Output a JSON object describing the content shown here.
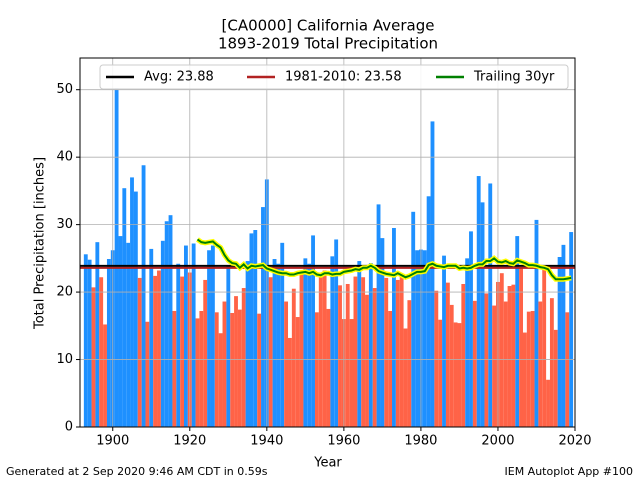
{
  "chart_data": {
    "type": "bar",
    "title": "[CA0000] California Average",
    "subtitle": "1893-2019 Total Precipitation",
    "xlabel": "Year",
    "ylabel": "Total Precipitation [inches]",
    "footer_left": "Generated at 2 Sep 2020 9:46 AM CDT in 0.59s",
    "footer_right": "IEM Autoplot App #100",
    "x": [
      1893,
      1894,
      1895,
      1896,
      1897,
      1898,
      1899,
      1900,
      1901,
      1902,
      1903,
      1904,
      1905,
      1906,
      1907,
      1908,
      1909,
      1910,
      1911,
      1912,
      1913,
      1914,
      1915,
      1916,
      1917,
      1918,
      1919,
      1920,
      1921,
      1922,
      1923,
      1924,
      1925,
      1926,
      1927,
      1928,
      1929,
      1930,
      1931,
      1932,
      1933,
      1934,
      1935,
      1936,
      1937,
      1938,
      1939,
      1940,
      1941,
      1942,
      1943,
      1944,
      1945,
      1946,
      1947,
      1948,
      1949,
      1950,
      1951,
      1952,
      1953,
      1954,
      1955,
      1956,
      1957,
      1958,
      1959,
      1960,
      1961,
      1962,
      1963,
      1964,
      1965,
      1966,
      1967,
      1968,
      1969,
      1970,
      1971,
      1972,
      1973,
      1974,
      1975,
      1976,
      1977,
      1978,
      1979,
      1980,
      1981,
      1982,
      1983,
      1984,
      1985,
      1986,
      1987,
      1988,
      1989,
      1990,
      1991,
      1992,
      1993,
      1994,
      1995,
      1996,
      1997,
      1998,
      1999,
      2000,
      2001,
      2002,
      2003,
      2004,
      2005,
      2006,
      2007,
      2008,
      2009,
      2010,
      2011,
      2012,
      2013,
      2014,
      2015,
      2016,
      2017,
      2018,
      2019
    ],
    "values": [
      25.6,
      24.8,
      20.7,
      27.4,
      22.2,
      15.2,
      24.9,
      26.2,
      50.2,
      28.3,
      35.4,
      27.3,
      37.0,
      34.9,
      22.1,
      38.8,
      15.6,
      26.4,
      22.4,
      23.2,
      27.6,
      30.5,
      31.4,
      17.2,
      24.2,
      22.3,
      26.9,
      22.9,
      27.2,
      16.1,
      17.2,
      21.8,
      26.2,
      26.9,
      17.0,
      13.9,
      18.6,
      23.9,
      16.9,
      19.4,
      17.4,
      20.6,
      24.6,
      28.7,
      29.2,
      16.8,
      32.6,
      36.7,
      22.2,
      24.9,
      24.2,
      27.3,
      18.6,
      13.2,
      20.5,
      16.3,
      22.7,
      25.0,
      24.2,
      28.4,
      17.0,
      22.6,
      23.2,
      17.5,
      25.3,
      27.8,
      21.0,
      16.0,
      21.2,
      16.0,
      22.3,
      24.6,
      22.2,
      19.6,
      24.3,
      20.6,
      33.0,
      28.0,
      22.1,
      17.2,
      29.5,
      21.8,
      22.3,
      14.6,
      18.8,
      31.9,
      26.2,
      26.3,
      26.2,
      34.2,
      45.3,
      20.2,
      15.9,
      25.4,
      21.4,
      18.1,
      15.5,
      15.4,
      21.2,
      25.0,
      29.0,
      18.7,
      37.2,
      33.3,
      19.8,
      36.1,
      18.0,
      21.5,
      22.8,
      18.6,
      20.9,
      21.1,
      28.3,
      23.5,
      14.0,
      17.1,
      17.2,
      30.7,
      18.6,
      23.5,
      7.0,
      19.1,
      14.4,
      25.2,
      27.0,
      17.0,
      28.9
    ],
    "above_color": "#1e90ff",
    "below_color": "#ff6347",
    "hlines": [
      {
        "name": "Avg: 23.88",
        "value": 23.88,
        "color": "#000000"
      },
      {
        "name": "1981-2010: 23.58",
        "value": 23.58,
        "color": "#b22222"
      }
    ],
    "series": [
      {
        "name": "Trailing 30yr",
        "color": "#008000",
        "values": [
          null,
          null,
          null,
          null,
          null,
          null,
          null,
          null,
          null,
          null,
          null,
          null,
          null,
          null,
          null,
          null,
          null,
          null,
          null,
          null,
          null,
          null,
          null,
          null,
          null,
          null,
          null,
          null,
          null,
          27.8,
          27.4,
          27.3,
          27.4,
          27.5,
          27.0,
          26.6,
          25.5,
          24.7,
          24.3,
          24.2,
          23.6,
          24.1,
          23.5,
          23.9,
          23.8,
          23.9,
          24.0,
          23.5,
          23.3,
          23.1,
          22.9,
          22.8,
          22.8,
          22.6,
          22.6,
          22.8,
          22.9,
          23.0,
          22.8,
          23.0,
          22.6,
          22.5,
          22.8,
          22.8,
          22.6,
          22.7,
          22.7,
          23.0,
          23.1,
          23.2,
          23.4,
          23.3,
          23.6,
          23.6,
          23.9,
          23.6,
          23.1,
          22.9,
          22.7,
          22.6,
          22.5,
          22.8,
          22.5,
          22.2,
          22.4,
          22.7,
          23.0,
          23.0,
          23.1,
          24.0,
          24.2,
          23.9,
          23.8,
          23.7,
          23.9,
          23.9,
          23.9,
          23.5,
          23.6,
          23.5,
          23.6,
          23.9,
          24.1,
          24.1,
          24.6,
          24.6,
          25.0,
          24.5,
          24.4,
          24.6,
          24.3,
          24.2,
          24.7,
          24.5,
          24.3,
          24.0,
          24.0,
          23.9,
          23.7,
          23.6,
          23.4,
          22.5,
          21.9,
          21.9,
          21.9,
          22.0,
          22.1
        ]
      }
    ],
    "xlim": [
      1891.5,
      2020
    ],
    "xticks": [
      1900,
      1920,
      1940,
      1960,
      1980,
      2000,
      2020
    ],
    "ylim": [
      0,
      54.7
    ],
    "yticks": [
      0,
      10,
      20,
      30,
      40,
      50
    ],
    "grid": true,
    "legend": "top"
  }
}
